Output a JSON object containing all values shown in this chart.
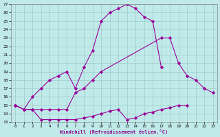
{
  "xlabel": "Windchill (Refroidissement éolien,°C)",
  "xlim": [
    -0.5,
    23.5
  ],
  "ylim": [
    13,
    27
  ],
  "xticks": [
    0,
    1,
    2,
    3,
    4,
    5,
    6,
    7,
    8,
    9,
    10,
    11,
    12,
    13,
    14,
    15,
    16,
    17,
    18,
    19,
    20,
    21,
    22,
    23
  ],
  "yticks": [
    13,
    14,
    15,
    16,
    17,
    18,
    19,
    20,
    21,
    22,
    23,
    24,
    25,
    26,
    27
  ],
  "background_color": "#c0eaea",
  "line_color": "#990099",
  "grid_color": "#a0c8c8",
  "series1_x": [
    0,
    1,
    2,
    3,
    4,
    5,
    6,
    7,
    8,
    9,
    10,
    11,
    12,
    13,
    14,
    15,
    16,
    17,
    18,
    19,
    20
  ],
  "series1_y": [
    15.0,
    14.5,
    14.5,
    13.3,
    13.3,
    13.3,
    13.3,
    13.3,
    13.5,
    13.7,
    14.0,
    14.3,
    14.5,
    13.3,
    13.5,
    14.0,
    14.2,
    14.5,
    14.7,
    15.0,
    15.0
  ],
  "series2_x": [
    0,
    1,
    2,
    3,
    4,
    5,
    6,
    7,
    8,
    9,
    10,
    11,
    12,
    13,
    14,
    15,
    16,
    17
  ],
  "series2_y": [
    15.0,
    14.5,
    16.0,
    17.0,
    18.0,
    18.5,
    19.0,
    17.0,
    19.5,
    21.5,
    25.0,
    26.0,
    26.5,
    27.0,
    26.5,
    25.5,
    25.0,
    19.5
  ],
  "series3_x": [
    0,
    1,
    2,
    3,
    4,
    5,
    6,
    7,
    8,
    9,
    10,
    17,
    18,
    19,
    20,
    21,
    22,
    23
  ],
  "series3_y": [
    15.0,
    14.5,
    14.5,
    14.5,
    14.5,
    14.5,
    14.5,
    16.5,
    17.0,
    18.0,
    19.0,
    23.0,
    23.0,
    20.0,
    18.5,
    18.0,
    17.0,
    16.5
  ]
}
